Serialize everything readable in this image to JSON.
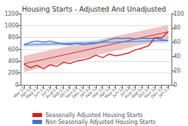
{
  "chart_data": {
    "type": "line",
    "title": "Housing Starts - Adjusted And Unadjusted",
    "categories": [
      "Mar-11",
      "Apr-11",
      "May-11",
      "Jun-11",
      "Jul-11",
      "Aug-11",
      "Sep-11",
      "Oct-11",
      "Nov-11",
      "Dec-11",
      "Jan-12",
      "Feb-12",
      "Mar-12",
      "Apr-12",
      "May-12",
      "Jun-12",
      "Jul-12",
      "Aug-12",
      "Sep-12",
      "Oct-12",
      "Nov-12",
      "Dec-12",
      "Jan-13"
    ],
    "series": [
      {
        "type": "band",
        "color": "#e8b0b0",
        "x": [
          "Mar-11",
          "Jan-13"
        ],
        "lower": [
          220,
          780
        ],
        "upper": [
          490,
          1010
        ]
      },
      {
        "type": "band",
        "color": "#c0d0f0",
        "x": [
          "Mar-11",
          "Jan-13"
        ],
        "lower": [
          640,
          710
        ],
        "upper": [
          710,
          790
        ]
      },
      {
        "type": "line",
        "color": "#cc2222",
        "x": [
          "Mar-11",
          "Jan-13"
        ],
        "values": [
          355,
          895
        ]
      },
      {
        "type": "line",
        "color": "#4472c4",
        "x": [
          "Mar-11",
          "Jan-13"
        ],
        "values": [
          675,
          750
        ]
      },
      {
        "name": "Seasonally Adjusted Housing Starts",
        "type": "line",
        "color": "#cc2222",
        "values": [
          350,
          290,
          330,
          270,
          340,
          310,
          380,
          360,
          400,
          420,
          450,
          500,
          460,
          520,
          490,
          510,
          540,
          590,
          620,
          660,
          800,
          790,
          900
        ]
      },
      {
        "name": "Non Seasonally Adjusted Housing Starts",
        "type": "line",
        "color": "#4472c4",
        "values": [
          670,
          720,
          740,
          720,
          740,
          710,
          690,
          680,
          700,
          680,
          690,
          700,
          730,
          760,
          790,
          780,
          790,
          770,
          790,
          780,
          790,
          760,
          750
        ]
      }
    ],
    "ylim": [
      0,
      1200
    ],
    "yticks": [
      0,
      200,
      400,
      600,
      800,
      1000,
      1200
    ],
    "y2lim": [
      0,
      100
    ],
    "y2ticks": [
      0,
      20,
      40,
      60,
      80,
      100
    ],
    "grid": true,
    "legend": "bottom"
  }
}
